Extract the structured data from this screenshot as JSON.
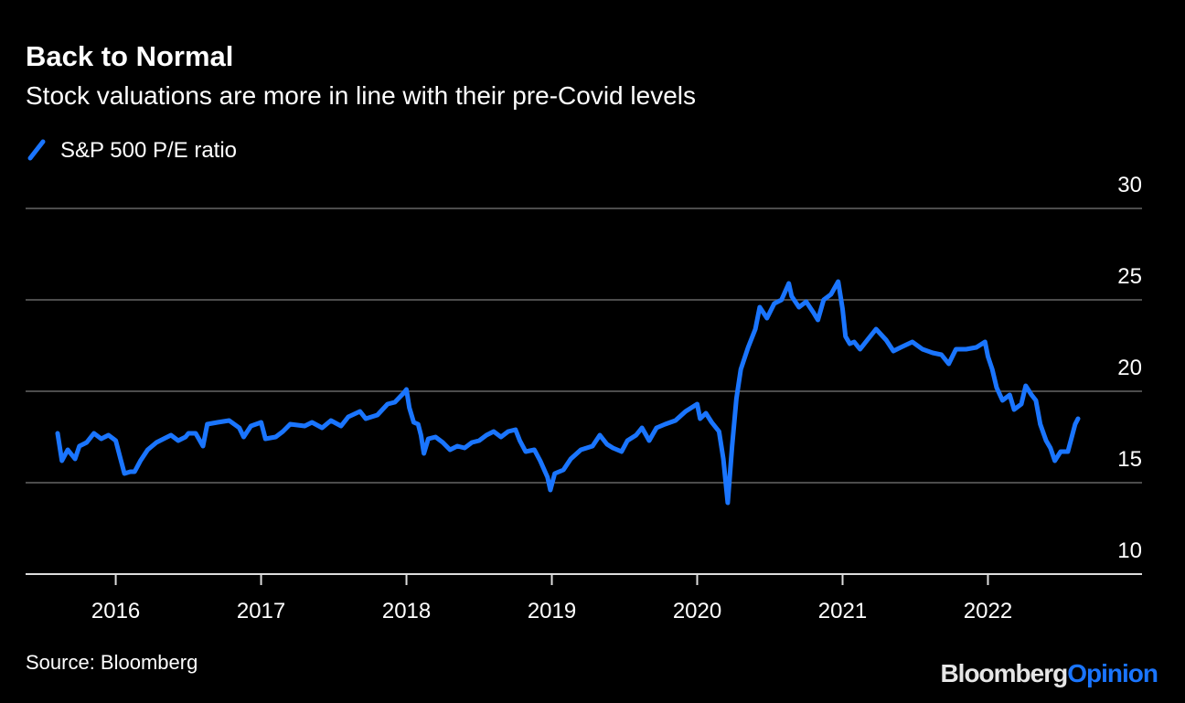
{
  "chart_data": {
    "type": "line",
    "title": "Back to Normal",
    "subtitle": "Stock valuations are more in line with their pre-Covid levels",
    "source": "Source: Bloomberg",
    "logo": [
      "Bloomberg",
      "Opinion"
    ],
    "legend": "top-left",
    "grid": true,
    "xlim": [
      2015.38,
      2023.06
    ],
    "xticks": [
      2016,
      2017,
      2018,
      2019,
      2020,
      2021,
      2022
    ],
    "ylim": [
      10,
      30
    ],
    "yticks": [
      10,
      15,
      20,
      25,
      30
    ],
    "x": [
      2015.6,
      2015.63,
      2015.67,
      2015.72,
      2015.75,
      2015.8,
      2015.85,
      2015.9,
      2015.95,
      2016.0,
      2016.03,
      2016.06,
      2016.1,
      2016.13,
      2016.17,
      2016.22,
      2016.28,
      2016.33,
      2016.38,
      2016.43,
      2016.48,
      2016.5,
      2016.55,
      2016.6,
      2016.63,
      2016.7,
      2016.78,
      2016.85,
      2016.88,
      2016.93,
      2017.0,
      2017.03,
      2017.1,
      2017.15,
      2017.2,
      2017.3,
      2017.35,
      2017.42,
      2017.48,
      2017.55,
      2017.6,
      2017.68,
      2017.72,
      2017.8,
      2017.87,
      2017.92,
      2017.98,
      2018.0,
      2018.02,
      2018.05,
      2018.08,
      2018.1,
      2018.12,
      2018.15,
      2018.2,
      2018.25,
      2018.3,
      2018.35,
      2018.4,
      2018.45,
      2018.5,
      2018.55,
      2018.6,
      2018.65,
      2018.7,
      2018.75,
      2018.78,
      2018.82,
      2018.88,
      2018.92,
      2018.97,
      2018.99,
      2019.02,
      2019.08,
      2019.13,
      2019.2,
      2019.28,
      2019.33,
      2019.38,
      2019.42,
      2019.48,
      2019.52,
      2019.58,
      2019.62,
      2019.67,
      2019.72,
      2019.78,
      2019.85,
      2019.92,
      2019.98,
      2020.0,
      2020.02,
      2020.06,
      2020.1,
      2020.15,
      2020.18,
      2020.2,
      2020.21,
      2020.24,
      2020.27,
      2020.3,
      2020.35,
      2020.4,
      2020.43,
      2020.48,
      2020.53,
      2020.58,
      2020.63,
      2020.65,
      2020.7,
      2020.75,
      2020.8,
      2020.83,
      2020.87,
      2020.92,
      2020.97,
      2021.0,
      2021.02,
      2021.05,
      2021.08,
      2021.12,
      2021.17,
      2021.23,
      2021.3,
      2021.35,
      2021.4,
      2021.48,
      2021.55,
      2021.62,
      2021.68,
      2021.73,
      2021.78,
      2021.85,
      2021.92,
      2021.98,
      2022.0,
      2022.03,
      2022.06,
      2022.1,
      2022.15,
      2022.18,
      2022.23,
      2022.26,
      2022.3,
      2022.33,
      2022.36,
      2022.4,
      2022.43,
      2022.46,
      2022.5,
      2022.55,
      2022.58,
      2022.6,
      2022.62
    ],
    "series": [
      {
        "name": "S&P 500 P/E ratio",
        "color": "#1a75ff",
        "values": [
          17.7,
          16.2,
          16.8,
          16.3,
          17.0,
          17.2,
          17.7,
          17.4,
          17.6,
          17.3,
          16.4,
          15.5,
          15.6,
          15.6,
          16.2,
          16.8,
          17.2,
          17.4,
          17.6,
          17.3,
          17.5,
          17.7,
          17.7,
          17.0,
          18.2,
          18.3,
          18.4,
          18.0,
          17.5,
          18.1,
          18.3,
          17.4,
          17.5,
          17.8,
          18.2,
          18.1,
          18.3,
          18.0,
          18.4,
          18.1,
          18.6,
          18.9,
          18.5,
          18.7,
          19.3,
          19.4,
          19.9,
          20.1,
          19.1,
          18.3,
          18.2,
          17.6,
          16.6,
          17.4,
          17.5,
          17.2,
          16.8,
          17.0,
          16.9,
          17.2,
          17.3,
          17.6,
          17.8,
          17.5,
          17.8,
          17.9,
          17.3,
          16.7,
          16.8,
          16.2,
          15.3,
          14.6,
          15.5,
          15.7,
          16.3,
          16.8,
          17.0,
          17.6,
          17.1,
          16.9,
          16.7,
          17.3,
          17.6,
          18.0,
          17.3,
          18.0,
          18.2,
          18.4,
          18.9,
          19.2,
          19.3,
          18.5,
          18.8,
          18.3,
          17.8,
          16.3,
          14.7,
          13.9,
          17.0,
          19.6,
          21.2,
          22.4,
          23.4,
          24.6,
          24.0,
          24.8,
          25.0,
          25.9,
          25.2,
          24.6,
          24.9,
          24.3,
          23.9,
          25.0,
          25.3,
          26.0,
          24.5,
          23.0,
          22.6,
          22.7,
          22.3,
          22.8,
          23.4,
          22.8,
          22.2,
          22.4,
          22.7,
          22.3,
          22.1,
          22.0,
          21.5,
          22.3,
          22.3,
          22.4,
          22.7,
          21.9,
          21.2,
          20.2,
          19.5,
          19.8,
          19.0,
          19.3,
          20.3,
          19.8,
          19.5,
          18.2,
          17.3,
          16.9,
          16.2,
          16.7,
          16.7,
          17.6,
          18.2,
          18.5
        ]
      }
    ]
  }
}
